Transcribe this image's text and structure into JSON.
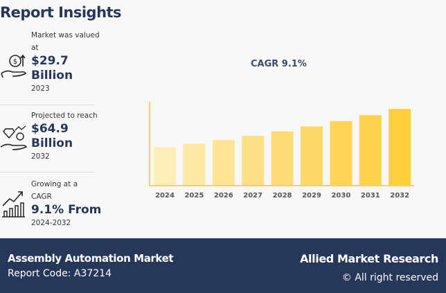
{
  "header": {
    "title": "Report Insights"
  },
  "insights": [
    {
      "label": "Market was valued at",
      "value": "$29.7 Billion",
      "period": "2023",
      "icon": "money-hand-icon"
    },
    {
      "label": "Projected to reach",
      "value": "$64.9 Billion",
      "period": "2032",
      "icon": "diamond-hand-icon"
    },
    {
      "label": "Growing at a CAGR",
      "value": "9.1% From",
      "period": "2024-2032",
      "icon": "growth-chart-icon"
    }
  ],
  "chart_data": {
    "type": "bar",
    "title": "CAGR 9.1%",
    "categories": [
      "2024",
      "2025",
      "2026",
      "2027",
      "2028",
      "2029",
      "2030",
      "2031",
      "2032"
    ],
    "values": [
      32.4,
      35.4,
      38.6,
      42.1,
      45.9,
      50.1,
      54.6,
      59.6,
      64.9
    ],
    "ylim": [
      0,
      75
    ],
    "grid": false,
    "colors": [
      "#fdedb9",
      "#fde8a6",
      "#fde496",
      "#fddf86",
      "#fddb78",
      "#fed868",
      "#fed458",
      "#fed24c",
      "#fecf3c"
    ],
    "axis_color": "#fdd33f"
  },
  "footer": {
    "market_name": "Assembly Automation Market",
    "report_code": "Report Code: A37214",
    "brand": "Allied Market Research",
    "rights": "© All right reserved"
  }
}
